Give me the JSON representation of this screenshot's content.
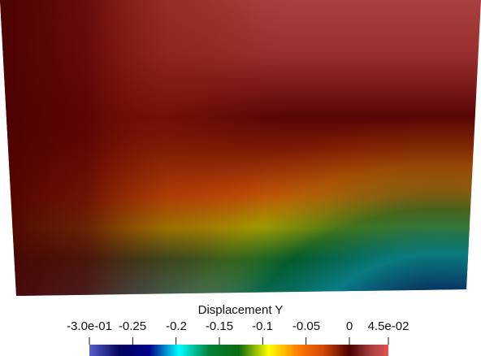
{
  "colorbar": {
    "title": "Displacement Y",
    "ticks": [
      {
        "label": "-3.0e-01",
        "value": -0.3
      },
      {
        "label": "-0.25",
        "value": -0.25
      },
      {
        "label": "-0.2",
        "value": -0.2
      },
      {
        "label": "-0.15",
        "value": -0.15
      },
      {
        "label": "-0.1",
        "value": -0.1
      },
      {
        "label": "-0.05",
        "value": -0.05
      },
      {
        "label": "0",
        "value": 0
      },
      {
        "label": "4.5e-02",
        "value": 0.045
      }
    ],
    "range": [
      -0.3,
      0.045
    ],
    "colormap": [
      "#5a60cc",
      "#02045c",
      "#00008a",
      "#00ffff",
      "#03803a",
      "#0a6a10",
      "#ffff00",
      "#ff7a00",
      "#d24a06",
      "#4c0000",
      "#a33e3e",
      "#e65353"
    ]
  },
  "field": {
    "name": "Displacement Y",
    "colors": {
      "top_light": "#b24646",
      "dark_band": "#560404",
      "orange": "#c04a08",
      "olive": "#9c9a00",
      "green": "#03582e",
      "cyan": "#0a7c88",
      "navy": "#050a3e",
      "left_edge": "#4a0000"
    }
  }
}
